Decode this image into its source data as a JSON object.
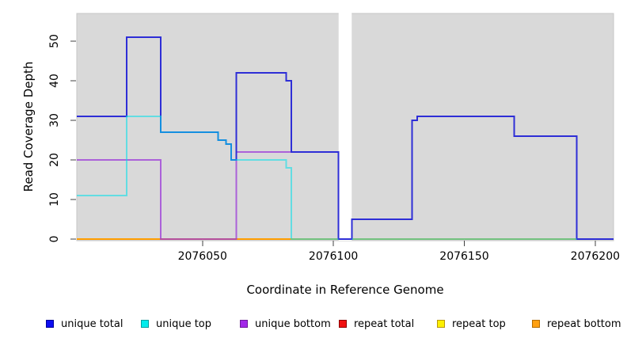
{
  "chart_data": {
    "type": "line",
    "title": "",
    "xlabel": "Coordinate in Reference Genome",
    "ylabel": "Read Coverage Depth",
    "panel_background": "#d9d9d9",
    "x_axis": {
      "min": 2076002,
      "max": 2076207,
      "ticks": [
        2076050,
        2076100,
        2076150,
        2076200
      ]
    },
    "y_axis": {
      "min": 0,
      "max": 57,
      "ticks": [
        0,
        10,
        20,
        30,
        40,
        50
      ]
    },
    "no_data_gap": {
      "from": 2076102,
      "to": 2076107
    },
    "series": [
      {
        "name": "repeat total",
        "color": "#cc2222",
        "opacity": 1,
        "segments": [
          [
            [
              2076002,
              0
            ],
            [
              2076207,
              0
            ]
          ]
        ]
      },
      {
        "name": "repeat top",
        "color": "#f5e400",
        "opacity": 1,
        "segments": [
          [
            [
              2076002,
              0
            ],
            [
              2076207,
              0
            ]
          ]
        ]
      },
      {
        "name": "repeat bottom",
        "color": "#ff9d00",
        "opacity": 1,
        "segments": [
          [
            [
              2076002,
              0
            ],
            [
              2076207,
              0
            ]
          ]
        ]
      },
      {
        "name": "unique bottom",
        "color": "#9932d8",
        "opacity": 0.72,
        "segments": [
          [
            [
              2076002,
              20
            ],
            [
              2076034,
              0
            ],
            [
              2076063,
              22
            ],
            [
              2076102,
              22
            ]
          ]
        ]
      },
      {
        "name": "unique total",
        "color": "#2e2ed6",
        "opacity": 1,
        "segments": [
          [
            [
              2076002,
              31
            ],
            [
              2076021,
              51
            ],
            [
              2076034,
              27
            ],
            [
              2076056,
              25
            ],
            [
              2076059,
              24
            ],
            [
              2076061,
              20
            ],
            [
              2076063,
              42
            ],
            [
              2076082,
              40
            ],
            [
              2076084,
              22
            ],
            [
              2076102,
              0
            ],
            [
              2076107,
              5
            ],
            [
              2076130,
              30
            ],
            [
              2076132,
              31
            ],
            [
              2076169,
              26
            ],
            [
              2076193,
              0
            ],
            [
              2076207,
              0
            ]
          ]
        ]
      },
      {
        "name": "unique top",
        "color": "#00e0ea",
        "opacity": 0.55,
        "segments": [
          [
            [
              2076002,
              11
            ],
            [
              2076021,
              31
            ],
            [
              2076034,
              27
            ],
            [
              2076056,
              25
            ],
            [
              2076059,
              24
            ],
            [
              2076061,
              20
            ],
            [
              2076082,
              18
            ],
            [
              2076084,
              0
            ],
            [
              2076102,
              0
            ]
          ],
          [
            [
              2076107,
              0
            ],
            [
              2076193,
              0
            ]
          ]
        ]
      }
    ]
  },
  "legend": {
    "items": [
      {
        "label": "unique total",
        "color": "#0d0df2",
        "border": "#000099"
      },
      {
        "label": "unique top",
        "color": "#00ecec",
        "border": "#009e9e"
      },
      {
        "label": "unique bottom",
        "color": "#a227e8",
        "border": "#6d1899"
      },
      {
        "label": "repeat total",
        "color": "#f01010",
        "border": "#8e0000"
      },
      {
        "label": "repeat top",
        "color": "#fdf000",
        "border": "#b8960b"
      },
      {
        "label": "repeat bottom",
        "color": "#ffa010",
        "border": "#b36b00"
      }
    ]
  }
}
